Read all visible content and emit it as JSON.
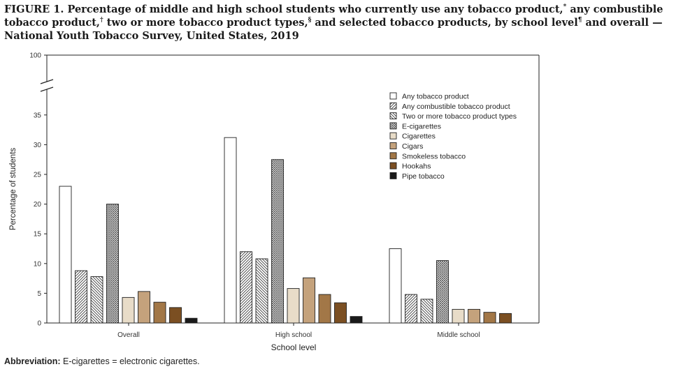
{
  "figure": {
    "title_main_1": "FIGURE 1. Percentage of middle and high school students who currently use any tobacco product,",
    "sup_1": "*",
    "title_main_2": " any combustible tobacco product,",
    "sup_2": "†",
    "title_main_3": " two or more tobacco product types,",
    "sup_3": "§",
    "title_main_4": " and selected tobacco products, by school level",
    "sup_4": "¶",
    "title_main_5": " and overall — National Youth Tobacco Survey, United States, 2019"
  },
  "footnote": {
    "label": "Abbreviation:",
    "text": " E-cigarettes = electronic cigarettes."
  },
  "colors": {
    "any": "#ffffff",
    "cigarettes": "#e8dcc8",
    "cigars": "#c4a27c",
    "smokeless": "#a27747",
    "hookahs": "#7b4f22",
    "pipe": "#1a1a1a",
    "stroke": "#222222"
  },
  "chart_data": {
    "type": "bar",
    "xlabel": "School level",
    "ylabel": "Percentage of students",
    "y_ticks": [
      "0",
      "5",
      "10",
      "15",
      "20",
      "25",
      "30",
      "35"
    ],
    "y_break_tick": "100",
    "ylim": [
      0,
      100
    ],
    "axis_break": "between 35 and 100",
    "legend_position": "top-right",
    "categories": [
      "Overall",
      "High school",
      "Middle school"
    ],
    "series": [
      {
        "name": "Any tobacco product",
        "fill": "white",
        "values": [
          23.0,
          31.2,
          12.5
        ]
      },
      {
        "name": "Any combustible tobacco product",
        "fill": "diagonal-hatch",
        "values": [
          8.8,
          12.0,
          4.8
        ]
      },
      {
        "name": "Two or more tobacco product types",
        "fill": "reverse-diagonal-hatch",
        "values": [
          7.8,
          10.8,
          4.0
        ]
      },
      {
        "name": "E-cigarettes",
        "fill": "crosshatch",
        "values": [
          20.0,
          27.5,
          10.5
        ]
      },
      {
        "name": "Cigarettes",
        "fill": "cigarettes",
        "values": [
          4.3,
          5.8,
          2.3
        ]
      },
      {
        "name": "Cigars",
        "fill": "cigars",
        "values": [
          5.3,
          7.6,
          2.3
        ]
      },
      {
        "name": "Smokeless tobacco",
        "fill": "smokeless",
        "values": [
          3.5,
          4.8,
          1.8
        ]
      },
      {
        "name": "Hookahs",
        "fill": "hookahs",
        "values": [
          2.6,
          3.4,
          1.6
        ]
      },
      {
        "name": "Pipe tobacco",
        "fill": "pipe",
        "values": [
          0.8,
          1.1,
          0
        ]
      }
    ]
  }
}
